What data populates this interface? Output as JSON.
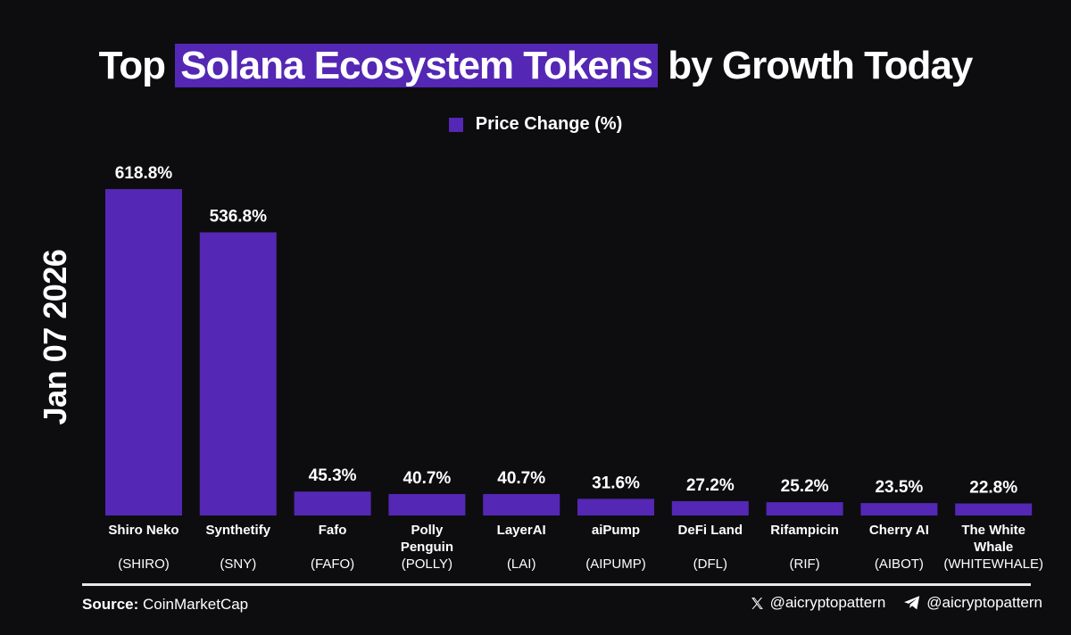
{
  "title": {
    "prefix": "Top",
    "highlight": "Solana Ecosystem Tokens",
    "suffix": "by Growth Today"
  },
  "legend": {
    "label": "Price Change (%)"
  },
  "side_label": "Jan 07 2026",
  "source": {
    "label": "Source:",
    "value": "CoinMarketCap"
  },
  "socials": [
    {
      "icon": "x-icon",
      "handle": "@aicryptopattern"
    },
    {
      "icon": "telegram-icon",
      "handle": "@aicryptopattern"
    }
  ],
  "colors": {
    "bar": "#5427b4",
    "background": "#0d0d0f",
    "text": "#ffffff"
  },
  "chart_data": {
    "type": "bar",
    "title": "Top Solana Ecosystem Tokens by Growth Today",
    "xlabel": "",
    "ylabel": "",
    "ylim": [
      0,
      618.8
    ],
    "grid": false,
    "legend_position": "top-center",
    "series": [
      {
        "name": "Price Change (%)"
      }
    ],
    "categories": [
      {
        "name": [
          "Shiro Neko"
        ],
        "symbol": "(SHIRO)"
      },
      {
        "name": [
          "Synthetify"
        ],
        "symbol": "(SNY)"
      },
      {
        "name": [
          "Fafo"
        ],
        "symbol": "(FAFO)"
      },
      {
        "name": [
          "Polly",
          "Penguin"
        ],
        "symbol": "(POLLY)"
      },
      {
        "name": [
          "LayerAI"
        ],
        "symbol": "(LAI)"
      },
      {
        "name": [
          "aiPump"
        ],
        "symbol": "(AIPUMP)"
      },
      {
        "name": [
          "DeFi Land"
        ],
        "symbol": "(DFL)"
      },
      {
        "name": [
          "Rifampicin"
        ],
        "symbol": "(RIF)"
      },
      {
        "name": [
          "Cherry AI"
        ],
        "symbol": "(AIBOT)"
      },
      {
        "name": [
          "The White",
          "Whale"
        ],
        "symbol": "(WHITEWHALE)"
      }
    ],
    "values": [
      618.8,
      536.8,
      45.3,
      40.7,
      40.7,
      31.6,
      27.2,
      25.2,
      23.5,
      22.8
    ],
    "value_labels": [
      "618.8%",
      "536.8%",
      "45.3%",
      "40.7%",
      "40.7%",
      "31.6%",
      "27.2%",
      "25.2%",
      "23.5%",
      "22.8%"
    ]
  }
}
